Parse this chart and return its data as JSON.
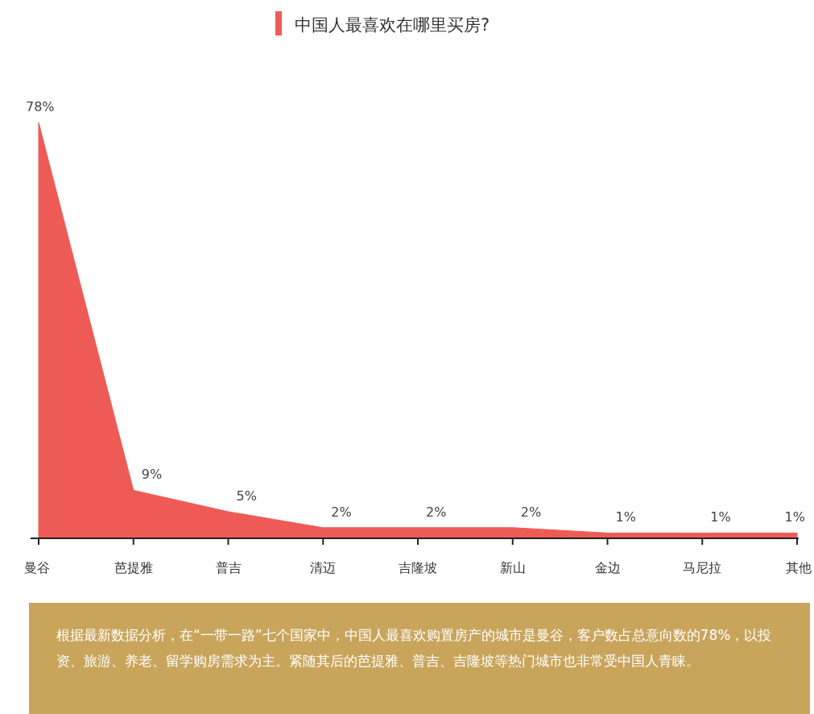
{
  "chart_data": {
    "type": "area",
    "title": "中国人最喜欢在哪里买房?",
    "categories": [
      "曼谷",
      "芭提雅",
      "普吉",
      "清迈",
      "吉隆坡",
      "新山",
      "金边",
      "马尼拉",
      "其他"
    ],
    "series": [
      {
        "color": "#ee5b56",
        "values": [
          78,
          9,
          5,
          2,
          2,
          2,
          1,
          1,
          1
        ],
        "value_labels": [
          "78%",
          "9%",
          "5%",
          "2%",
          "2%",
          "2%",
          "1%",
          "1%",
          "1%"
        ]
      }
    ],
    "annotations": [
      "根据最新数据分析，在“一带一路”七个国家中，中国人最喜欢购置房产的城市是曼谷，客户数占总意向数的78%，以投资、旅游、养老、留学购房需求为主。紧随其后的芭提雅、普吉、吉隆坡等热门城市也非常受中国人青睐。"
    ]
  }
}
